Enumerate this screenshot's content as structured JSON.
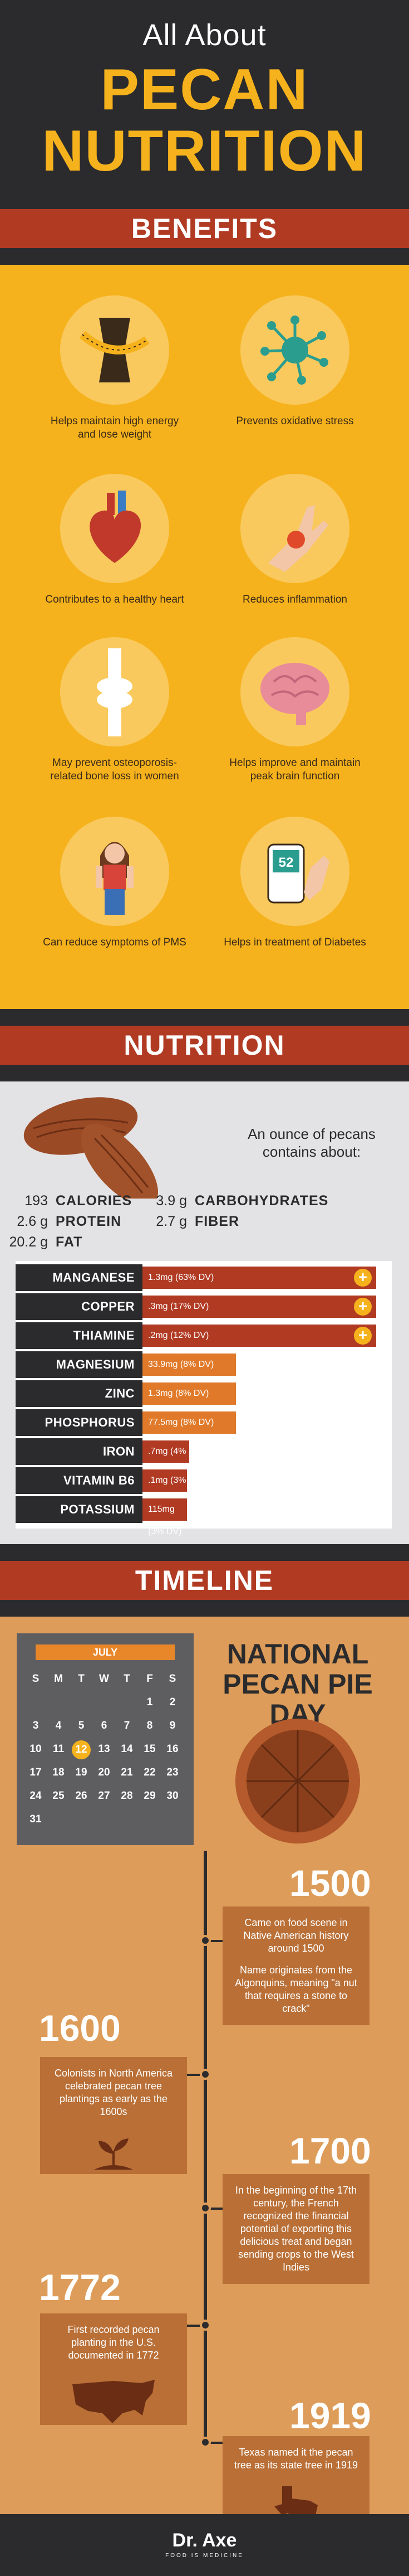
{
  "header": {
    "sub": "All About",
    "line1": "PECAN",
    "line2": "NUTRITION"
  },
  "benefits": {
    "title": "BENEFITS",
    "items": [
      {
        "icon": "measuring-tape-icon",
        "text": "Helps maintain high energy and lose weight"
      },
      {
        "icon": "molecule-icon",
        "text": "Prevents oxidative stress"
      },
      {
        "icon": "heart-icon",
        "text": "Contributes to a healthy heart"
      },
      {
        "icon": "inflamed-wrist-icon",
        "text": "Reduces inflammation"
      },
      {
        "icon": "bone-icon",
        "text": "May prevent osteoporosis-related bone loss in women"
      },
      {
        "icon": "brain-icon",
        "text": "Helps improve and maintain peak brain function"
      },
      {
        "icon": "woman-icon",
        "text": "Can reduce symptoms of PMS"
      },
      {
        "icon": "glucose-meter-icon",
        "text": "Helps in treatment of Diabetes",
        "meter_value": "52"
      }
    ]
  },
  "nutrition": {
    "title": "NUTRITION",
    "intro": "An ounce of pecans contains about:",
    "facts": [
      {
        "value": "193",
        "label": "CALORIES"
      },
      {
        "value": "3.9 g",
        "label": "CARBOHYDRATES"
      },
      {
        "value": "2.6 g",
        "label": "PROTEIN"
      },
      {
        "value": "2.7 g",
        "label": "FIBER"
      },
      {
        "value": "20.2 g",
        "label": "FAT"
      }
    ],
    "minerals": [
      {
        "name": "MANGANESE",
        "amount": "1.3mg (63% DV)",
        "dv": 63,
        "color": "#b13a23",
        "plus": true
      },
      {
        "name": "COPPER",
        "amount": ".3mg (17% DV)",
        "dv": 17,
        "color": "#b13a23",
        "plus": true
      },
      {
        "name": "THIAMINE",
        "amount": ".2mg (12% DV)",
        "dv": 12,
        "color": "#b13a23",
        "plus": true
      },
      {
        "name": "MAGNESIUM",
        "amount": "33.9mg (8% DV)",
        "dv": 8,
        "color": "#e07a2a",
        "plus": false
      },
      {
        "name": "ZINC",
        "amount": "1.3mg (8% DV)",
        "dv": 8,
        "color": "#e07a2a",
        "plus": false
      },
      {
        "name": "PHOSPHORUS",
        "amount": "77.5mg (8% DV)",
        "dv": 8,
        "color": "#e07a2a",
        "plus": false
      },
      {
        "name": "IRON",
        "amount": ".7mg (4% DV)",
        "dv": 4,
        "color": "#b13a23",
        "plus": false
      },
      {
        "name": "VITAMIN B6",
        "amount": ".1mg (3% DV)",
        "dv": 3,
        "color": "#b13a23",
        "plus": false
      },
      {
        "name": "POTASSIUM",
        "amount": "115mg (3% DV)",
        "dv": 3,
        "color": "#b13a23",
        "plus": false
      }
    ]
  },
  "timeline": {
    "title": "TIMELINE",
    "calendar": {
      "month": "JULY",
      "weekdays": [
        "S",
        "M",
        "T",
        "W",
        "T",
        "F",
        "S"
      ],
      "days": [
        "",
        "",
        "",
        "",
        "",
        "1",
        "2",
        "3",
        "4",
        "5",
        "6",
        "7",
        "8",
        "9",
        "10",
        "11",
        "12",
        "13",
        "14",
        "15",
        "16",
        "17",
        "18",
        "19",
        "20",
        "21",
        "22",
        "23",
        "24",
        "25",
        "26",
        "27",
        "28",
        "29",
        "30",
        "31"
      ],
      "highlight": "12"
    },
    "pie_day": "NATIONAL PECAN PIE DAY",
    "events": [
      {
        "year": "1500",
        "paragraphs": [
          "Came on food scene in Native American history around 1500",
          "Name originates from the Algonquins, meaning \"a nut that requires a stone to crack\""
        ]
      },
      {
        "year": "1600",
        "paragraphs": [
          "Colonists in North America celebrated pecan tree plantings as early as the 1600s"
        ]
      },
      {
        "year": "1700",
        "paragraphs": [
          "In the beginning of the 17th century, the French recognized the financial potential of exporting this delicious treat and began sending crops to the West Indies"
        ]
      },
      {
        "year": "1772",
        "paragraphs": [
          "First recorded pecan planting in the U.S. documented in 1772"
        ]
      },
      {
        "year": "1919",
        "paragraphs": [
          "Texas named it the pecan tree as its state tree in 1919"
        ]
      }
    ]
  },
  "footer": {
    "logo": "Dr. Axe",
    "tag": "FOOD IS MEDICINE"
  }
}
